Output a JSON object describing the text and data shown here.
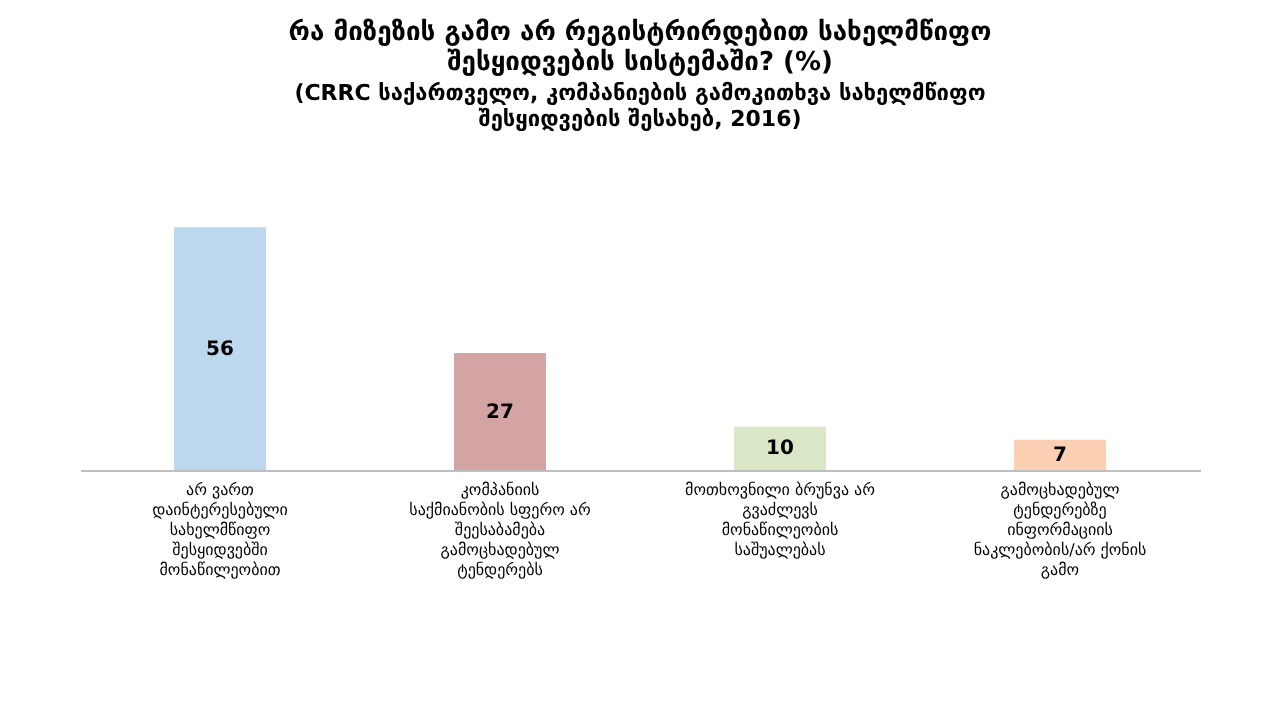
{
  "chart_data": {
    "type": "bar",
    "title": "რა მიზეზის გამო არ  რეგისტრირდებით სახელმწიფო შესყიდვების სისტემაში? (%)",
    "subtitle": "(CRRC საქართველო, კომპანიების გამოკითხვა სახელმწიფო შესყიდვების შესახებ, 2016)",
    "categories": [
      "არ ვართ დაინტერესებული სახელმწიფო შესყიდვებში მონაწილეობით",
      "კომპანიის საქმიანობის სფერო არ შეესაბამება გამოცხადებულ ტენდერებს",
      "მოთხოვნილი ბრუნვა არ გვაძლევს მონაწილეობის საშუალებას",
      "გამოცხადებულ ტენდერებზე ინფორმაციის ნაკლებობის/არ ქონის გამო"
    ],
    "values": [
      56,
      27,
      10,
      7
    ],
    "colors": [
      "#bdd7ee",
      "#d4a3a3",
      "#d9e7c6",
      "#fbd0b3"
    ],
    "data_labels": true
  }
}
